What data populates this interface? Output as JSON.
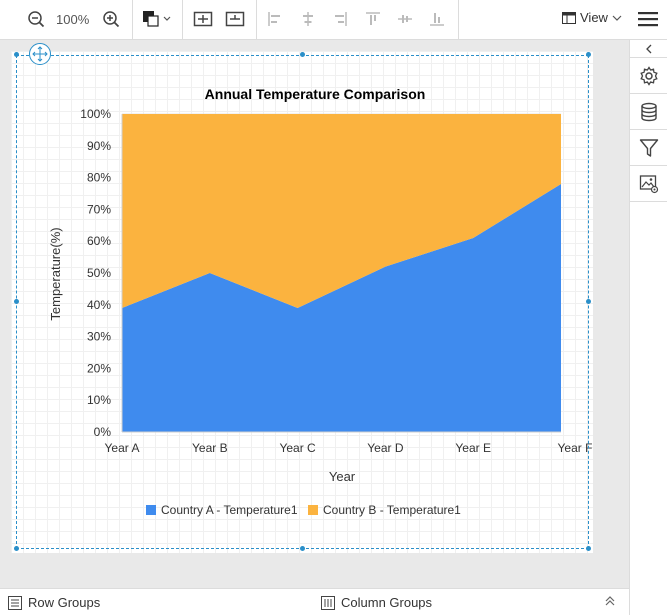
{
  "toolbar": {
    "zoom_level": "100%",
    "view_label": "View"
  },
  "chart_data": {
    "type": "area",
    "stacked": "percent",
    "title": "Annual Temperature Comparison",
    "xlabel": "Year",
    "ylabel": "Temperature(%)",
    "categories": [
      "Year A",
      "Year B",
      "Year C",
      "Year D",
      "Year E",
      "Year F"
    ],
    "yticks": [
      "0%",
      "10%",
      "20%",
      "30%",
      "40%",
      "50%",
      "60%",
      "70%",
      "80%",
      "90%",
      "100%"
    ],
    "ylim": [
      0,
      100
    ],
    "series": [
      {
        "name": "Country A - Temperature1",
        "color": "#3f8bee",
        "values": [
          39,
          50,
          39,
          52,
          61,
          78
        ]
      },
      {
        "name": "Country B - Temperature1",
        "color": "#fbb33f",
        "values": [
          61,
          50,
          61,
          48,
          39,
          22
        ]
      }
    ],
    "legend_position": "bottom",
    "grid": true
  },
  "bottom_bar": {
    "row_groups": "Row Groups",
    "column_groups": "Column Groups"
  },
  "colors": {
    "accent": "#2a8fc9",
    "series_a": "#3f8bee",
    "series_b": "#fbb33f"
  }
}
